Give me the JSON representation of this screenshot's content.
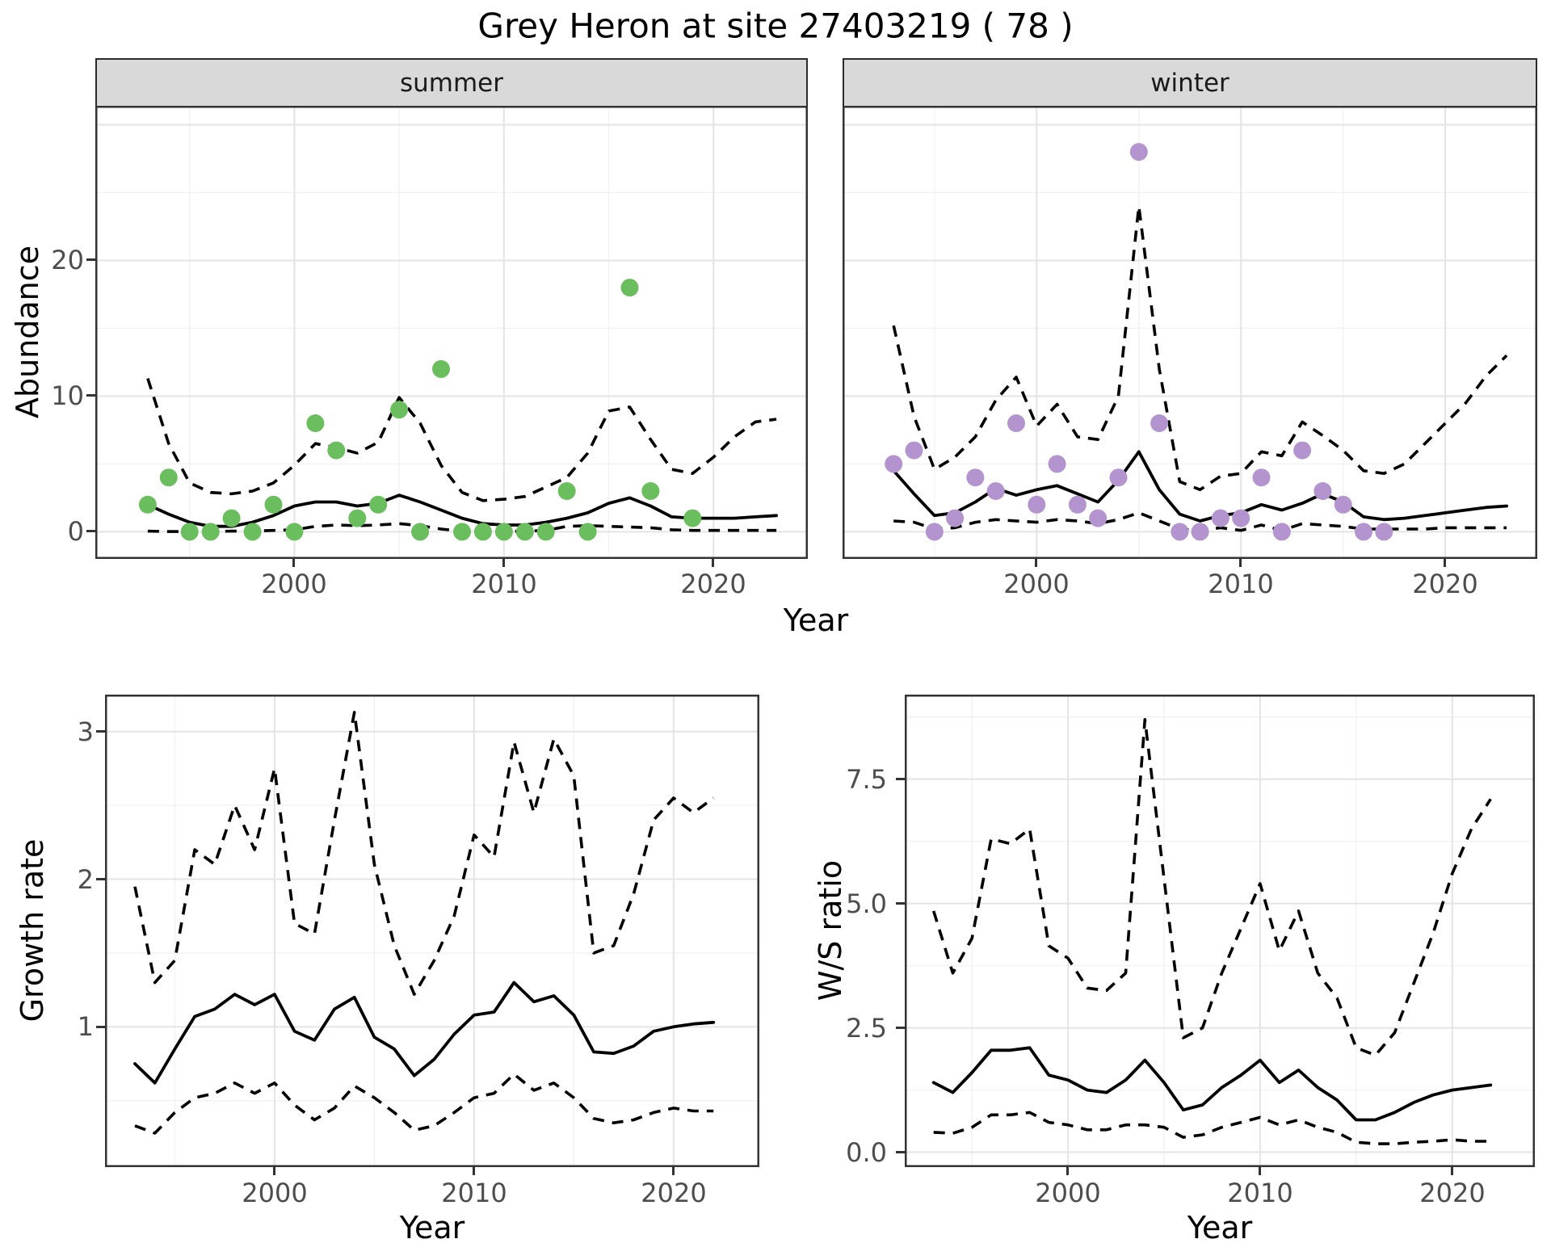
{
  "title": "Grey Heron at site 27403219 ( 78 )",
  "colors": {
    "summer_points": "#6BBE5E",
    "winter_points": "#B494CF",
    "fit_line": "#000000",
    "strip_background": "#d9d9d9",
    "grid_major": "#e4e4e4",
    "tick_text": "#4d4d4d"
  },
  "chart_data": [
    {
      "id": "summer",
      "type": "scatter",
      "facet_label": "summer",
      "ylabel": "Abundance",
      "xlabel": "Year",
      "xlim": [
        1990.5,
        2024.5
      ],
      "ylim": [
        -2.0,
        31.4
      ],
      "xticks": [
        2000,
        2010,
        2020
      ],
      "yticks": [
        0,
        10,
        20
      ],
      "xtick_labels": [
        "2000",
        "2010",
        "2020"
      ],
      "ytick_labels": [
        "20",
        "10",
        "0"
      ],
      "grid": {
        "x_major": [
          2000,
          2010,
          2020
        ],
        "x_minor": [
          1995,
          2005,
          2015
        ],
        "y_major": [
          0,
          10,
          20,
          30
        ],
        "y_minor": [
          5,
          15,
          25
        ]
      },
      "point_color": "#6BBE5E",
      "points": {
        "years": [
          1993,
          1994,
          1995,
          1996,
          1997,
          1998,
          1999,
          2000,
          2001,
          2002,
          2003,
          2004,
          2005,
          2006,
          2007,
          2008,
          2009,
          2010,
          2011,
          2012,
          2013,
          2014,
          2016,
          2017,
          2019
        ],
        "values": [
          2,
          4,
          0,
          0,
          1,
          0,
          2,
          0,
          8,
          6,
          1,
          2,
          9,
          0,
          12,
          0,
          0,
          0,
          0,
          0,
          3,
          0,
          18,
          3,
          1
        ]
      },
      "line_years": [
        1993,
        1994,
        1995,
        1996,
        1997,
        1998,
        1999,
        2000,
        2001,
        2002,
        2003,
        2004,
        2005,
        2006,
        2007,
        2008,
        2009,
        2010,
        2011,
        2012,
        2013,
        2014,
        2015,
        2016,
        2017,
        2018,
        2019,
        2020,
        2021,
        2022,
        2023
      ],
      "fit": [
        2.0,
        1.3,
        0.7,
        0.4,
        0.4,
        0.7,
        1.2,
        1.9,
        2.2,
        2.2,
        1.9,
        2.1,
        2.7,
        2.2,
        1.6,
        1.0,
        0.6,
        0.5,
        0.5,
        0.7,
        1.0,
        1.4,
        2.1,
        2.5,
        1.9,
        1.1,
        1.0,
        1.0,
        1.0,
        1.1,
        1.2
      ],
      "ci_upper": [
        11.3,
        6.5,
        3.6,
        2.9,
        2.8,
        3.0,
        3.6,
        4.9,
        6.5,
        6.2,
        5.8,
        6.6,
        9.9,
        8.0,
        4.9,
        2.9,
        2.3,
        2.4,
        2.6,
        3.3,
        4.0,
        5.8,
        8.9,
        9.2,
        6.8,
        4.6,
        4.3,
        5.5,
        7.0,
        8.1,
        8.3
      ],
      "ci_lower": [
        0.05,
        0.02,
        0.02,
        0.02,
        0.05,
        0.05,
        0.1,
        0.15,
        0.4,
        0.5,
        0.45,
        0.5,
        0.6,
        0.45,
        0.2,
        0.05,
        0.02,
        0.02,
        0.05,
        0.1,
        0.4,
        0.45,
        0.4,
        0.35,
        0.3,
        0.15,
        0.1,
        0.1,
        0.1,
        0.1,
        0.1
      ]
    },
    {
      "id": "winter",
      "type": "scatter",
      "facet_label": "winter",
      "ylabel": "Abundance",
      "xlabel": "Year",
      "xlim": [
        1990.5,
        2024.5
      ],
      "ylim": [
        -2.0,
        31.4
      ],
      "xticks": [
        2000,
        2010,
        2020
      ],
      "yticks": [
        0,
        10,
        20
      ],
      "xtick_labels": [
        "2000",
        "2010",
        "2020"
      ],
      "ytick_labels": [
        "20",
        "10",
        "0"
      ],
      "grid": {
        "x_major": [
          2000,
          2010,
          2020
        ],
        "x_minor": [
          1995,
          2005,
          2015
        ],
        "y_major": [
          0,
          10,
          20,
          30
        ],
        "y_minor": [
          5,
          15,
          25
        ]
      },
      "point_color": "#B494CF",
      "points": {
        "years": [
          1993,
          1994,
          1995,
          1996,
          1997,
          1998,
          1999,
          2000,
          2001,
          2002,
          2003,
          2004,
          2005,
          2006,
          2007,
          2008,
          2009,
          2010,
          2011,
          2012,
          2013,
          2014,
          2015,
          2016,
          2017
        ],
        "values": [
          5,
          6,
          0,
          1,
          4,
          3,
          8,
          2,
          5,
          2,
          1,
          4,
          28,
          8,
          0,
          0,
          1,
          1,
          4,
          0,
          6,
          3,
          2,
          0,
          0
        ]
      },
      "line_years": [
        1993,
        1994,
        1995,
        1996,
        1997,
        1998,
        1999,
        2000,
        2001,
        2002,
        2003,
        2004,
        2005,
        2006,
        2007,
        2008,
        2009,
        2010,
        2011,
        2012,
        2013,
        2014,
        2015,
        2016,
        2017,
        2018,
        2019,
        2020,
        2021,
        2022,
        2023
      ],
      "fit": [
        4.5,
        2.8,
        1.2,
        1.4,
        2.2,
        3.2,
        2.7,
        3.1,
        3.4,
        2.8,
        2.2,
        3.8,
        5.9,
        3.1,
        1.3,
        0.8,
        1.2,
        1.4,
        2.0,
        1.6,
        2.1,
        2.8,
        2.2,
        1.1,
        0.9,
        1.0,
        1.2,
        1.4,
        1.6,
        1.8,
        1.9
      ],
      "ci_upper": [
        15.2,
        8.5,
        4.6,
        5.5,
        7.0,
        9.7,
        11.4,
        7.8,
        9.4,
        7.0,
        6.8,
        10.0,
        24.0,
        12.0,
        3.7,
        3.1,
        4.1,
        4.3,
        5.9,
        5.6,
        8.1,
        7.1,
        6.0,
        4.5,
        4.3,
        5.0,
        6.5,
        8.0,
        9.5,
        11.5,
        13.0
      ],
      "ci_lower": [
        0.8,
        0.7,
        0.2,
        0.3,
        0.7,
        0.9,
        0.8,
        0.7,
        0.9,
        0.8,
        0.6,
        0.9,
        1.4,
        0.8,
        0.2,
        0.1,
        0.3,
        0.1,
        0.5,
        0.1,
        0.6,
        0.5,
        0.4,
        0.2,
        0.2,
        0.2,
        0.2,
        0.3,
        0.3,
        0.3,
        0.3
      ]
    },
    {
      "id": "growth",
      "type": "line",
      "facet_label": "",
      "ylabel": "Growth rate",
      "xlabel": "Year",
      "xlim": [
        1991.5,
        2024.3
      ],
      "ylim": [
        0.05,
        3.25
      ],
      "xticks": [
        2000,
        2010,
        2020
      ],
      "yticks": [
        1,
        2,
        3
      ],
      "xtick_labels": [
        "2000",
        "2010",
        "2020"
      ],
      "ytick_labels": [
        "3",
        "2",
        "1"
      ],
      "grid": {
        "x_major": [
          2000,
          2010,
          2020
        ],
        "x_minor": [
          1995,
          2005,
          2015
        ],
        "y_major": [
          1,
          2,
          3
        ],
        "y_minor": [
          0.5,
          1.5,
          2.5
        ]
      },
      "line_years": [
        1993,
        1994,
        1995,
        1996,
        1997,
        1998,
        1999,
        2000,
        2001,
        2002,
        2003,
        2004,
        2005,
        2006,
        2007,
        2008,
        2009,
        2010,
        2011,
        2012,
        2013,
        2014,
        2015,
        2016,
        2017,
        2018,
        2019,
        2020,
        2021,
        2022
      ],
      "fit": [
        0.75,
        0.62,
        0.85,
        1.07,
        1.12,
        1.22,
        1.15,
        1.22,
        0.97,
        0.91,
        1.12,
        1.2,
        0.93,
        0.85,
        0.67,
        0.78,
        0.95,
        1.08,
        1.1,
        1.3,
        1.17,
        1.21,
        1.08,
        0.83,
        0.82,
        0.87,
        0.97,
        1.0,
        1.02,
        1.03
      ],
      "ci_upper": [
        1.95,
        1.3,
        1.45,
        2.2,
        2.1,
        2.5,
        2.2,
        2.75,
        1.7,
        1.63,
        2.4,
        3.13,
        2.1,
        1.55,
        1.22,
        1.45,
        1.75,
        2.3,
        2.15,
        2.93,
        2.45,
        2.95,
        2.7,
        1.5,
        1.55,
        1.9,
        2.4,
        2.55,
        2.45,
        2.55
      ],
      "ci_lower": [
        0.33,
        0.28,
        0.42,
        0.52,
        0.55,
        0.62,
        0.55,
        0.62,
        0.47,
        0.37,
        0.45,
        0.6,
        0.52,
        0.42,
        0.3,
        0.33,
        0.42,
        0.52,
        0.55,
        0.68,
        0.57,
        0.62,
        0.52,
        0.38,
        0.35,
        0.37,
        0.42,
        0.45,
        0.43,
        0.43
      ]
    },
    {
      "id": "ws",
      "type": "line",
      "facet_label": "",
      "ylabel": "W/S ratio",
      "xlabel": "Year",
      "xlim": [
        1991.5,
        2024.3
      ],
      "ylim": [
        -0.3,
        9.2
      ],
      "xticks": [
        2000,
        2010,
        2020
      ],
      "yticks": [
        0.0,
        2.5,
        5.0,
        7.5
      ],
      "xtick_labels": [
        "2000",
        "2010",
        "2020"
      ],
      "ytick_labels": [
        "7.5",
        "5.0",
        "2.5",
        "0.0"
      ],
      "grid": {
        "x_major": [
          2000,
          2010,
          2020
        ],
        "x_minor": [
          1995,
          2005,
          2015
        ],
        "y_major": [
          0,
          2.5,
          5,
          7.5
        ],
        "y_minor": [
          1.25,
          3.75,
          6.25,
          8.75
        ]
      },
      "line_years": [
        1993,
        1994,
        1995,
        1996,
        1997,
        1998,
        1999,
        2000,
        2001,
        2002,
        2003,
        2004,
        2005,
        2006,
        2007,
        2008,
        2009,
        2010,
        2011,
        2012,
        2013,
        2014,
        2015,
        2016,
        2017,
        2018,
        2019,
        2020,
        2021,
        2022
      ],
      "fit": [
        1.4,
        1.2,
        1.6,
        2.05,
        2.05,
        2.1,
        1.55,
        1.45,
        1.25,
        1.2,
        1.45,
        1.85,
        1.4,
        0.85,
        0.95,
        1.3,
        1.55,
        1.85,
        1.4,
        1.65,
        1.3,
        1.05,
        0.65,
        0.65,
        0.8,
        1.0,
        1.15,
        1.25,
        1.3,
        1.35
      ],
      "ci_upper": [
        4.85,
        3.6,
        4.3,
        6.3,
        6.2,
        6.5,
        4.15,
        3.9,
        3.3,
        3.25,
        3.6,
        8.7,
        5.5,
        2.3,
        2.5,
        3.6,
        4.5,
        5.4,
        4.05,
        4.85,
        3.6,
        3.1,
        2.1,
        1.95,
        2.4,
        3.4,
        4.4,
        5.6,
        6.5,
        7.1
      ],
      "ci_lower": [
        0.4,
        0.38,
        0.5,
        0.75,
        0.75,
        0.8,
        0.6,
        0.55,
        0.45,
        0.45,
        0.55,
        0.55,
        0.5,
        0.3,
        0.35,
        0.5,
        0.6,
        0.7,
        0.55,
        0.65,
        0.5,
        0.4,
        0.2,
        0.17,
        0.17,
        0.2,
        0.22,
        0.25,
        0.22,
        0.22
      ]
    }
  ]
}
